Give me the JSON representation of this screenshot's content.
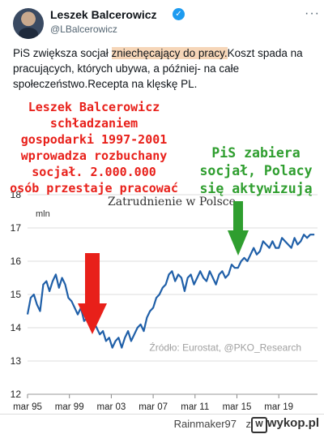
{
  "tweet": {
    "name": "Leszek Balcerowicz",
    "handle": "@LBalcerowicz",
    "verified_icon": "verified-badge-icon",
    "text_before": "PiS zwiększa socjał ",
    "text_highlight": "zniechęcający do pracy.",
    "text_after": "Koszt spada na pracujących, których ubywa, a później- na całe społeczeństwo.Recepta na klęskę PL."
  },
  "annotations": {
    "left_lines": [
      "Leszek Balcerowicz",
      "schładzaniem",
      "gospodarki 1997-2001",
      "wprowadza rozbuchany",
      "socjał. 2.000.000",
      "osób przestaje pracować"
    ],
    "right_lines": [
      "PiS zabiera",
      "socjał, Polacy",
      "się aktywizują"
    ],
    "left_color": "#e8201a",
    "right_color": "#2f9e2f"
  },
  "chart_data": {
    "type": "line",
    "title": "Zatrudnienie w Polsce",
    "ylabel": "mln",
    "source": "Źródło: Eurostat, @PKO_Research",
    "ylim": [
      12,
      18
    ],
    "yticks": [
      12,
      13,
      14,
      15,
      16,
      17,
      18
    ],
    "xlim": [
      1995,
      2022.7
    ],
    "xticks": [
      {
        "x": 1995,
        "label": "mar 95"
      },
      {
        "x": 1999,
        "label": "mar 99"
      },
      {
        "x": 2003,
        "label": "mar 03"
      },
      {
        "x": 2007,
        "label": "mar 07"
      },
      {
        "x": 2011,
        "label": "mar 11"
      },
      {
        "x": 2015,
        "label": "mar 15"
      },
      {
        "x": 2019,
        "label": "mar 19"
      }
    ],
    "grid": true,
    "color": "#1f5fa8",
    "series": [
      {
        "values": [
          [
            1995.0,
            14.4
          ],
          [
            1995.3,
            14.9
          ],
          [
            1995.6,
            15.0
          ],
          [
            1995.9,
            14.7
          ],
          [
            1996.2,
            14.5
          ],
          [
            1996.5,
            15.3
          ],
          [
            1996.8,
            15.4
          ],
          [
            1997.1,
            15.1
          ],
          [
            1997.4,
            15.4
          ],
          [
            1997.7,
            15.6
          ],
          [
            1998.0,
            15.2
          ],
          [
            1998.3,
            15.5
          ],
          [
            1998.6,
            15.3
          ],
          [
            1998.9,
            14.9
          ],
          [
            1999.2,
            14.8
          ],
          [
            1999.5,
            14.6
          ],
          [
            1999.8,
            14.4
          ],
          [
            2000.1,
            14.6
          ],
          [
            2000.4,
            14.2
          ],
          [
            2000.7,
            14.3
          ],
          [
            2001.0,
            14.1
          ],
          [
            2001.3,
            14.2
          ],
          [
            2001.6,
            14.0
          ],
          [
            2001.9,
            13.8
          ],
          [
            2002.2,
            13.9
          ],
          [
            2002.5,
            13.6
          ],
          [
            2002.8,
            13.7
          ],
          [
            2003.1,
            13.4
          ],
          [
            2003.4,
            13.6
          ],
          [
            2003.7,
            13.7
          ],
          [
            2004.0,
            13.4
          ],
          [
            2004.3,
            13.7
          ],
          [
            2004.6,
            13.9
          ],
          [
            2004.9,
            13.6
          ],
          [
            2005.2,
            13.8
          ],
          [
            2005.5,
            14.0
          ],
          [
            2005.8,
            14.1
          ],
          [
            2006.1,
            13.9
          ],
          [
            2006.4,
            14.3
          ],
          [
            2006.7,
            14.5
          ],
          [
            2007.0,
            14.6
          ],
          [
            2007.3,
            14.9
          ],
          [
            2007.6,
            15.0
          ],
          [
            2007.9,
            15.2
          ],
          [
            2008.2,
            15.3
          ],
          [
            2008.5,
            15.6
          ],
          [
            2008.8,
            15.7
          ],
          [
            2009.1,
            15.4
          ],
          [
            2009.4,
            15.6
          ],
          [
            2009.7,
            15.5
          ],
          [
            2010.0,
            15.1
          ],
          [
            2010.3,
            15.5
          ],
          [
            2010.6,
            15.6
          ],
          [
            2010.9,
            15.3
          ],
          [
            2011.2,
            15.5
          ],
          [
            2011.5,
            15.7
          ],
          [
            2011.8,
            15.5
          ],
          [
            2012.1,
            15.4
          ],
          [
            2012.4,
            15.7
          ],
          [
            2012.7,
            15.5
          ],
          [
            2013.0,
            15.3
          ],
          [
            2013.3,
            15.6
          ],
          [
            2013.6,
            15.7
          ],
          [
            2013.9,
            15.5
          ],
          [
            2014.2,
            15.6
          ],
          [
            2014.5,
            15.9
          ],
          [
            2014.8,
            15.8
          ],
          [
            2015.1,
            15.8
          ],
          [
            2015.4,
            16.0
          ],
          [
            2015.7,
            16.1
          ],
          [
            2016.0,
            16.0
          ],
          [
            2016.3,
            16.2
          ],
          [
            2016.6,
            16.4
          ],
          [
            2016.9,
            16.2
          ],
          [
            2017.2,
            16.3
          ],
          [
            2017.5,
            16.6
          ],
          [
            2017.8,
            16.5
          ],
          [
            2018.1,
            16.4
          ],
          [
            2018.4,
            16.6
          ],
          [
            2018.7,
            16.4
          ],
          [
            2019.0,
            16.4
          ],
          [
            2019.3,
            16.7
          ],
          [
            2019.6,
            16.6
          ],
          [
            2019.9,
            16.5
          ],
          [
            2020.2,
            16.4
          ],
          [
            2020.5,
            16.7
          ],
          [
            2020.8,
            16.5
          ],
          [
            2021.1,
            16.6
          ],
          [
            2021.4,
            16.8
          ],
          [
            2021.7,
            16.7
          ],
          [
            2022.0,
            16.8
          ],
          [
            2022.4,
            16.8
          ]
        ]
      }
    ]
  },
  "footer": {
    "user": "Rainmaker97",
    "sep": "z",
    "logo": "wykop.pl",
    "logo_mark": "W"
  }
}
